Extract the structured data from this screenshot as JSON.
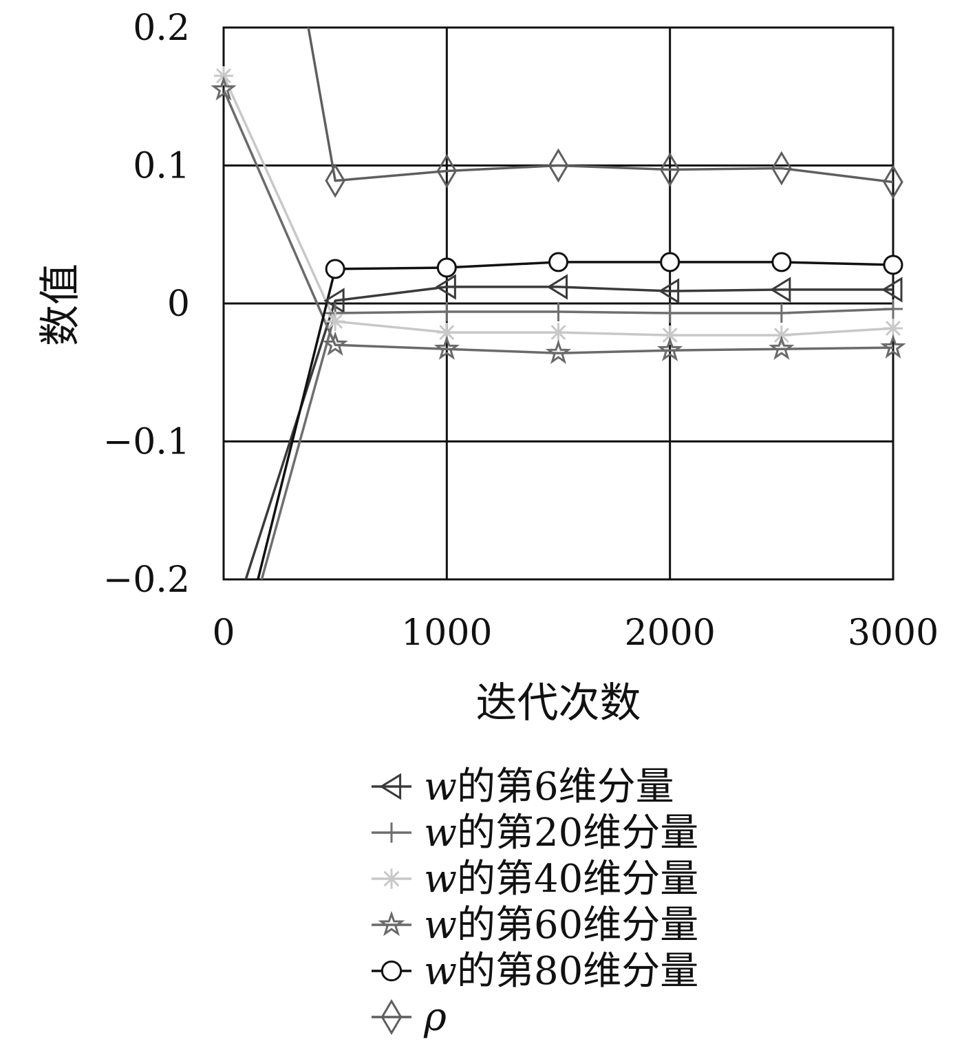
{
  "chart_data": {
    "type": "line",
    "title": "",
    "xlabel": "迭代次数",
    "ylabel": "数值",
    "xlim": [
      0,
      3000
    ],
    "ylim": [
      -0.2,
      0.2
    ],
    "x_ticks": [
      0,
      1000,
      2000,
      3000
    ],
    "x_tick_labels": [
      "0",
      "1000",
      "2000",
      "3000"
    ],
    "y_ticks": [
      0.2,
      0.1,
      0,
      -0.1,
      -0.2
    ],
    "y_tick_labels": [
      "0.2",
      "0.1",
      "0",
      "−0.1",
      "−0.2"
    ],
    "grid": true,
    "legend_position": "bottom",
    "x": [
      0,
      500,
      1000,
      1500,
      2000,
      2500,
      3000
    ],
    "series": [
      {
        "name": "w的第6维分量",
        "math": "w",
        "suffix": "的第6维分量",
        "marker": "triangle-left",
        "color": "#3a3a3a",
        "values": [
          -0.25,
          0.002,
          0.012,
          0.012,
          0.009,
          0.01,
          0.01
        ]
      },
      {
        "name": "w的第20维分量",
        "math": "w",
        "suffix": "的第20维分量",
        "marker": "plus",
        "color": "#6e6e6e",
        "values": [
          -0.3,
          -0.007,
          -0.006,
          -0.006,
          -0.007,
          -0.007,
          -0.004
        ]
      },
      {
        "name": "w的第40维分量",
        "math": "w",
        "suffix": "的第40维分量",
        "marker": "asterisk",
        "color": "#c8c8c8",
        "values": [
          0.165,
          -0.013,
          -0.021,
          -0.021,
          -0.023,
          -0.023,
          -0.018
        ]
      },
      {
        "name": "w的第60维分量",
        "math": "w",
        "suffix": "的第60维分量",
        "marker": "star",
        "color": "#6a6a6a",
        "values": [
          0.155,
          -0.03,
          -0.033,
          -0.036,
          -0.034,
          -0.033,
          -0.032
        ]
      },
      {
        "name": "w的第80维分量",
        "math": "w",
        "suffix": "的第80维分量",
        "marker": "circle",
        "color": "#111111",
        "values": [
          -0.3,
          0.025,
          0.026,
          0.03,
          0.03,
          0.03,
          0.028
        ]
      },
      {
        "name": "ρ",
        "math": "ρ",
        "suffix": "",
        "marker": "diamond",
        "color": "#5e5e5e",
        "values": [
          0.55,
          0.089,
          0.096,
          0.1,
          0.097,
          0.098,
          0.088
        ]
      }
    ]
  }
}
